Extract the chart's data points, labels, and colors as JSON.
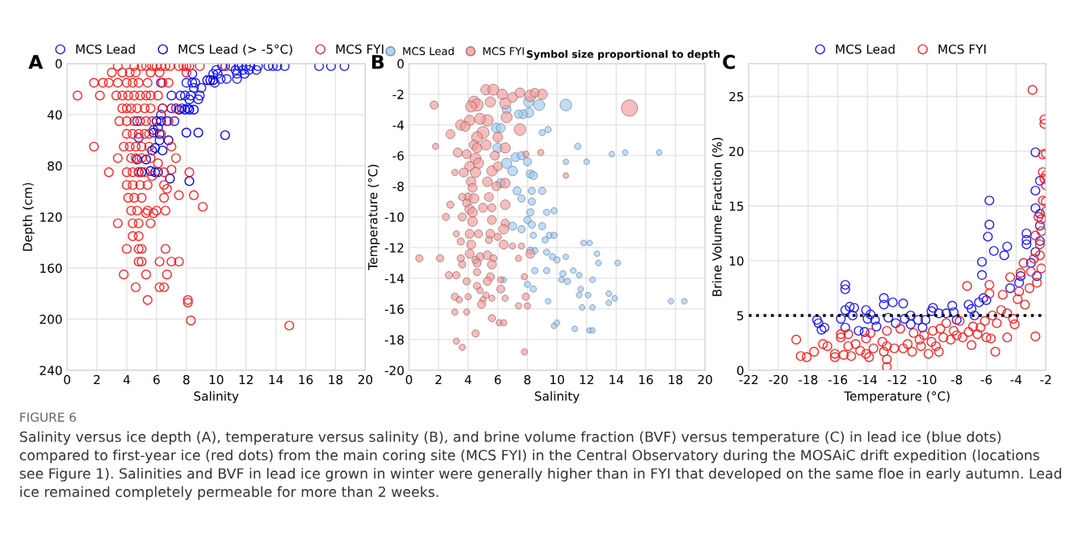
{
  "chart_data": [
    {
      "type": "scatter",
      "title": "A",
      "xlabel": "Salinity",
      "ylabel": "Depth (cm)",
      "xlim": [
        0,
        20
      ],
      "xticks": [
        0,
        2,
        4,
        6,
        8,
        10,
        12,
        14,
        16,
        18,
        20
      ],
      "ylim": [
        240,
        0
      ],
      "yticks": [
        0,
        40,
        80,
        120,
        160,
        200,
        240
      ],
      "grid": true,
      "legend": "top",
      "marker": "circle",
      "annotations": [
        "FIGURE 6",
        "Salinity versus ice depth (A), temperature versus salinity (B), and brine volume fraction (BVF) versus temperature (C) in lead ice (blue dots) compared to first-year ice (red dots) from the main coring site (MCS FYI) in the Central Observatory during the MOSAiC drift expedition (locations see Figure 1). Salinities and BVF in lead ice grown in winter were generally higher than in FYI that developed on the same floe in early autumn. Lead ice remained completely permeable for more than 2 weeks."
      ],
      "series": [
        {
          "name": "MCS Lead",
          "color": "#1a1aff",
          "x": [
            10.4,
            10.6,
            11.0,
            11.5,
            11.7,
            12.0,
            12.3,
            12.8,
            13.5,
            13.8,
            14.1,
            14.6,
            16.9,
            17.7,
            18.6,
            10.0,
            11.3,
            11.8,
            12.2,
            12.7,
            8.4,
            9.8,
            10.1,
            11.4,
            11.9,
            10.3,
            10.7,
            11.4,
            6.3,
            8.0,
            8.4,
            8.6,
            9.9,
            8.5,
            9.0,
            7.0,
            7.6,
            7.9,
            8.3,
            8.9,
            8.2,
            8.8,
            6.4,
            7.0,
            7.3,
            7.7,
            8.1,
            4.7,
            6.7,
            7.2,
            5.8,
            4.8,
            6.2,
            6.3
          ],
          "values": [
            2,
            2,
            2,
            2,
            2,
            2,
            2,
            2,
            2,
            2,
            2,
            2,
            2,
            2,
            2,
            5,
            5,
            5,
            5,
            5,
            8,
            8,
            8,
            8,
            8,
            12,
            12,
            12,
            15,
            15,
            15,
            15,
            15,
            19,
            19,
            25,
            25,
            25,
            25,
            25,
            28,
            28,
            35,
            35,
            35,
            35,
            35,
            45,
            45,
            45,
            52,
            58,
            60,
            40
          ]
        },
        {
          "name": "MCS Lead (> -5°C)",
          "color": "#0000ee",
          "x": [
            9.4,
            9.6,
            9.8,
            7.5,
            7.9,
            8.2,
            8.5,
            6.0,
            6.3,
            6.1,
            5.8,
            8.0,
            8.8,
            10.6,
            6.2,
            6.8,
            5.9,
            5.7,
            6.4,
            4.7,
            5.3,
            5.6,
            4.8,
            5.0,
            5.9,
            6.1,
            6.9,
            8.2
          ],
          "values": [
            13,
            13,
            13,
            36,
            36,
            36,
            36,
            45,
            45,
            50,
            54,
            54,
            54,
            56,
            55,
            60,
            66,
            68,
            68,
            75,
            75,
            84,
            85,
            85,
            85,
            85,
            90,
            92
          ]
        },
        {
          "name": "MCS FYI",
          "color": "#ff2020",
          "x": [
            3.4,
            4.5,
            5.0,
            5.3,
            5.7,
            6.0,
            6.3,
            6.6,
            6.9,
            7.5,
            7.8,
            8.0,
            8.2,
            8.9,
            10.6,
            3.0,
            3.7,
            4.2,
            4.6,
            5.6,
            6.2,
            8.0,
            1.8,
            2.4,
            2.8,
            3.4,
            4.0,
            4.4,
            4.8,
            5.4,
            6.4,
            6.8,
            0.7,
            2.2,
            3.3,
            3.7,
            4.1,
            4.5,
            4.9,
            5.3,
            5.6,
            6.1,
            3.7,
            4.0,
            4.3,
            4.7,
            5.2,
            5.6,
            6.4,
            7.3,
            3.5,
            4.0,
            4.5,
            4.9,
            5.3,
            5.7,
            6.8,
            4.0,
            4.4,
            4.8,
            5.2,
            5.5,
            6.3,
            1.8,
            3.8,
            4.2,
            4.6,
            5.0,
            5.5,
            7.0,
            3.4,
            4.3,
            4.6,
            5.0,
            5.6,
            7.3,
            6.1,
            2.8,
            4.0,
            4.4,
            4.8,
            5.2,
            6.5,
            8.2,
            7.0,
            5.7,
            4.0,
            4.4,
            4.9,
            5.4,
            6.5,
            6.7,
            7.5,
            8.5,
            4.1,
            4.5,
            5.0,
            6.5,
            9.1,
            4.3,
            4.7,
            5.4,
            6.0,
            6.6,
            5.3,
            5.8,
            3.4,
            4.4,
            4.8,
            5.6,
            4.4,
            4.8,
            4.0,
            4.8,
            5.0,
            6.6,
            4.8,
            5.0,
            6.2,
            7.0,
            7.5,
            3.8,
            5.3,
            6.7,
            4.6,
            6.2,
            6.5,
            5.4,
            8.1,
            8.1,
            8.3,
            14.9
          ],
          "values": [
            2,
            2,
            2,
            2,
            2,
            2,
            2,
            2,
            2,
            2,
            2,
            2,
            2,
            2,
            2,
            7,
            7,
            7,
            7,
            7,
            7,
            7,
            15,
            15,
            15,
            15,
            15,
            15,
            15,
            15,
            15,
            15,
            25,
            25,
            25,
            25,
            25,
            25,
            25,
            25,
            25,
            25,
            35,
            35,
            35,
            35,
            35,
            35,
            35,
            35,
            45,
            45,
            45,
            45,
            45,
            45,
            45,
            55,
            55,
            55,
            55,
            55,
            55,
            65,
            65,
            65,
            65,
            65,
            65,
            65,
            74,
            74,
            74,
            74,
            74,
            74,
            78,
            85,
            85,
            85,
            85,
            85,
            85,
            85,
            83,
            88,
            95,
            95,
            95,
            95,
            95,
            98,
            103,
            103,
            105,
            105,
            105,
            105,
            112,
            115,
            115,
            115,
            115,
            115,
            117,
            117,
            125,
            125,
            125,
            125,
            135,
            135,
            145,
            145,
            145,
            145,
            155,
            155,
            155,
            155,
            155,
            165,
            165,
            165,
            175,
            175,
            175,
            185,
            185,
            187,
            201,
            205
          ]
        }
      ]
    },
    {
      "type": "bubble",
      "title": "B",
      "xlabel": "Salinity",
      "ylabel": "Temperature (°C)",
      "xlim": [
        0,
        20
      ],
      "xticks": [
        0,
        2,
        4,
        6,
        8,
        10,
        12,
        14,
        16,
        18,
        20
      ],
      "ylim": [
        -20,
        0
      ],
      "yticks": [
        -20,
        -18,
        -16,
        -14,
        -12,
        -10,
        -8,
        -6,
        -4,
        -2,
        0
      ],
      "grid": true,
      "legend": "top",
      "annotations": [
        "Symbol size proportional to depth"
      ],
      "series": [
        {
          "name": "MCS Lead",
          "color": "#9ccbf5",
          "x": [
            10.6,
            8.8,
            8.1,
            8.1,
            7.7,
            7.4,
            6.6,
            5.9,
            6.2,
            9.0,
            9.4,
            11.4,
            13.7,
            14.6,
            16.9,
            10.6,
            12.0,
            6.0,
            7.2,
            7.6,
            8.0,
            7.0,
            6.6,
            8.2,
            8.4,
            6.2,
            7.3,
            7.6,
            8.3,
            8.3,
            9.0,
            8.2,
            9.3,
            9.8,
            7.0,
            7.6,
            8.0,
            8.3,
            9.0,
            8.4,
            9.2,
            9.5,
            9.8,
            11.8,
            12.2,
            8.2,
            8.5,
            9.3,
            9.7,
            10.0,
            10.6,
            12.7,
            12.8,
            14.1,
            8.5,
            9.3,
            10.4,
            10.3,
            10.7,
            11.1,
            11.5,
            12.4,
            6.4,
            8.0,
            8.4,
            11.6,
            11.5,
            12.1,
            13.5,
            13.9,
            13.5,
            9.4,
            11.7,
            12.4,
            17.7,
            18.6,
            9.8,
            10.0,
            11.2,
            12.2,
            12.4
          ],
          "values": [
            -2.7,
            -2.7,
            -2.5,
            -3.2,
            -3.3,
            -3.3,
            -3.0,
            -4.2,
            -4.2,
            -4.5,
            -4.3,
            -5.4,
            -5.9,
            -5.8,
            -5.8,
            -6.4,
            -6.4,
            -5.5,
            -6.1,
            -6.0,
            -6.4,
            -7.0,
            -6.5,
            -7.2,
            -7.3,
            -7.8,
            -8.3,
            -8.8,
            -8.3,
            -9.0,
            -8.3,
            -9.7,
            -9.7,
            -9.6,
            -10.6,
            -10.8,
            -10.2,
            -10.5,
            -10.6,
            -11.2,
            -11.5,
            -11.2,
            -11.2,
            -11.7,
            -11.7,
            -12.2,
            -12.2,
            -12.3,
            -12.6,
            -12.8,
            -12.6,
            -12.4,
            -13.0,
            -13.0,
            -13.5,
            -13.5,
            -13.7,
            -14.1,
            -14.2,
            -13.5,
            -13.8,
            -14.1,
            -14.1,
            -14.4,
            -14.7,
            -14.7,
            -15.1,
            -15.1,
            -15.0,
            -15.3,
            -15.6,
            -15.5,
            -15.9,
            -15.9,
            -15.5,
            -15.5,
            -17.1,
            -16.9,
            -17.3,
            -17.4,
            -17.4
          ],
          "sizes": [
            0.5,
            0.45,
            0.4,
            0.35,
            0.3,
            0.25,
            0.3,
            0.35,
            0.3,
            0.15,
            0.15,
            0.15,
            0.12,
            0.12,
            0.12,
            0.12,
            0.12,
            0.35,
            0.3,
            0.25,
            0.25,
            0.35,
            0.4,
            0.25,
            0.25,
            0.3,
            0.25,
            0.2,
            0.2,
            0.2,
            0.2,
            0.2,
            0.15,
            0.15,
            0.25,
            0.2,
            0.2,
            0.2,
            0.2,
            0.15,
            0.15,
            0.15,
            0.15,
            0.12,
            0.12,
            0.2,
            0.15,
            0.15,
            0.15,
            0.15,
            0.12,
            0.12,
            0.12,
            0.12,
            0.15,
            0.15,
            0.15,
            0.12,
            0.15,
            0.12,
            0.12,
            0.12,
            0.12,
            0.15,
            0.15,
            0.12,
            0.12,
            0.12,
            0.12,
            0.12,
            0.12,
            0.12,
            0.12,
            0.12,
            0.12,
            0.12,
            0.12,
            0.12,
            0.12,
            0.12,
            0.12
          ]
        },
        {
          "name": "MCS FYI",
          "color": "#f29a9a",
          "x": [
            14.9,
            7.5,
            8.2,
            9.0,
            5.2,
            5.7,
            6.3,
            7.0,
            7.5,
            8.5,
            4.4,
            4.6,
            4.2,
            5.5,
            6.5,
            1.7,
            5.3,
            4.8,
            6.6,
            4.1,
            3.5,
            3.8,
            5.0,
            4.6,
            2.8,
            1.8,
            6.0,
            4.4,
            4.6,
            5.2,
            6.5,
            3.3,
            3.9,
            4.5,
            4.7,
            5.8,
            7.9,
            8.9,
            4.1,
            4.5,
            5.6,
            6.0,
            3.7,
            3.1,
            10.6,
            4.2,
            5.3,
            5.9,
            6.5,
            4.3,
            4.0,
            4.4,
            5.4,
            6.5,
            3.6,
            2.8,
            3.9,
            4.1,
            4.3,
            5.0,
            5.6,
            2.5,
            3.6,
            4.3,
            5.6,
            6.5,
            3.2,
            4.1,
            4.7,
            5.5,
            6.4,
            6.0,
            3.5,
            4.2,
            5.4,
            6.4,
            7.0,
            7.6,
            4.1,
            4.8,
            5.3,
            0.7,
            2.1,
            3.5,
            4.5,
            5.7,
            7.4,
            8.2,
            3.6,
            4.6,
            5.6,
            2.7,
            3.2,
            4.6,
            5.5,
            6.2,
            7.8,
            3.9,
            5.3,
            4.6,
            6.2,
            4.8,
            5.2,
            3.1,
            3.4,
            4.0,
            5.0,
            5.6,
            6.5,
            7.9,
            4.9,
            7.4,
            8.0,
            3.1,
            3.9,
            5.6,
            6.1,
            6.4,
            4.5,
            3.2,
            3.6,
            7.8
          ],
          "values": [
            -2.9,
            -4.3,
            -2.1,
            -2.0,
            -1.7,
            -1.7,
            -2.0,
            -2.2,
            -1.9,
            -1.9,
            -2.5,
            -2.7,
            -2.8,
            -2.5,
            -2.6,
            -2.7,
            -3.7,
            -3.6,
            -3.5,
            -3.7,
            -4.0,
            -4.1,
            -4.5,
            -4.8,
            -4.6,
            -5.4,
            -4.8,
            -5.3,
            -5.5,
            -5.3,
            -5.5,
            -5.8,
            -5.9,
            -6.2,
            -6.5,
            -6.0,
            -5.9,
            -5.8,
            -6.7,
            -7.1,
            -7.0,
            -6.7,
            -7.1,
            -7.1,
            -7.3,
            -7.7,
            -7.7,
            -8.0,
            -7.8,
            -8.1,
            -8.7,
            -8.8,
            -8.7,
            -9.2,
            -8.7,
            -9.2,
            -9.1,
            -9.5,
            -9.7,
            -9.4,
            -9.4,
            -10.0,
            -10.0,
            -10.3,
            -10.2,
            -10.4,
            -11.1,
            -11.1,
            -11.1,
            -11.1,
            -10.8,
            -11.3,
            -11.6,
            -11.8,
            -11.5,
            -11.8,
            -11.9,
            -11.9,
            -12.4,
            -12.6,
            -12.5,
            -12.7,
            -12.7,
            -12.7,
            -12.8,
            -12.7,
            -12.7,
            -12.4,
            -13.1,
            -13.0,
            -13.1,
            -13.8,
            -13.8,
            -13.6,
            -13.9,
            -14.1,
            -13.9,
            -14.2,
            -14.2,
            -14.5,
            -14.7,
            -14.8,
            -15.1,
            -15.2,
            -15.4,
            -15.2,
            -15.4,
            -15.3,
            -15.3,
            -15.2,
            -15.7,
            -15.8,
            -15.8,
            -16.2,
            -16.2,
            -16.6,
            -16.9,
            -16.9,
            -17.6,
            -18.1,
            -18.5,
            -18.8
          ],
          "sizes": [
            1.0,
            0.5,
            0.5,
            0.4,
            0.4,
            0.45,
            0.4,
            0.35,
            0.35,
            0.3,
            0.5,
            0.55,
            0.45,
            0.4,
            0.45,
            0.25,
            0.5,
            0.45,
            0.45,
            0.4,
            0.4,
            0.35,
            0.55,
            0.45,
            0.3,
            0.15,
            0.35,
            0.35,
            0.35,
            0.4,
            0.4,
            0.3,
            0.3,
            0.45,
            0.4,
            0.3,
            0.15,
            0.15,
            0.35,
            0.4,
            0.4,
            0.3,
            0.3,
            0.15,
            0.12,
            0.35,
            0.35,
            0.3,
            0.35,
            0.3,
            0.25,
            0.35,
            0.3,
            0.35,
            0.2,
            0.2,
            0.25,
            0.35,
            0.35,
            0.3,
            0.25,
            0.2,
            0.25,
            0.35,
            0.3,
            0.25,
            0.15,
            0.3,
            0.25,
            0.3,
            0.35,
            0.2,
            0.2,
            0.3,
            0.2,
            0.3,
            0.15,
            0.15,
            0.3,
            0.25,
            0.3,
            0.2,
            0.2,
            0.2,
            0.2,
            0.2,
            0.15,
            0.3,
            0.2,
            0.25,
            0.3,
            0.2,
            0.2,
            0.2,
            0.25,
            0.15,
            0.15,
            0.2,
            0.25,
            0.2,
            0.25,
            0.15,
            0.15,
            0.2,
            0.15,
            0.15,
            0.15,
            0.15,
            0.15,
            0.2,
            0.25,
            0.15,
            0.15,
            0.15,
            0.15,
            0.2,
            0.15,
            0.15,
            0.2,
            0.15,
            0.15,
            0.15
          ]
        }
      ]
    },
    {
      "type": "scatter",
      "title": "C",
      "xlabel": "Temperature (°C)",
      "ylabel": "Brine Volume Fraction (%)",
      "xlim": [
        -22,
        -2
      ],
      "xticks": [
        -22,
        -20,
        -18,
        -16,
        -14,
        -12,
        -10,
        -8,
        -6,
        -4,
        -2
      ],
      "ylim": [
        0,
        28
      ],
      "yticks": [
        0,
        5,
        10,
        15,
        20,
        25
      ],
      "grid": true,
      "legend": "top",
      "marker": "circle",
      "ref_lines": [
        {
          "axis": "y",
          "value": 5,
          "label": null,
          "color": "#000000",
          "line_style": "dotted"
        }
      ],
      "series": [
        {
          "name": "MCS Lead",
          "color": "#1a1aff",
          "x": [
            -17.4,
            -17.3,
            -17.1,
            -16.9,
            -15.8,
            -15.5,
            -15.5,
            -15.5,
            -15.5,
            -15.2,
            -15.0,
            -14.9,
            -14.6,
            -14.2,
            -14.1,
            -14.0,
            -13.8,
            -13.5,
            -13.4,
            -12.9,
            -12.9,
            -12.6,
            -12.3,
            -12.1,
            -11.6,
            -11.5,
            -11.1,
            -11.1,
            -10.6,
            -10.3,
            -10.1,
            -9.7,
            -9.6,
            -9.2,
            -8.7,
            -8.3,
            -8.2,
            -8.0,
            -7.2,
            -7.0,
            -6.8,
            -6.5,
            -6.3,
            -6.3,
            -6.2,
            -6.0,
            -5.8,
            -5.8,
            -5.9,
            -5.5,
            -4.8,
            -4.6,
            -4.4,
            -3.8,
            -3.7,
            -3.3,
            -3.3,
            -3.3,
            -3.0,
            -2.7,
            -2.7,
            -2.7,
            -2.7,
            -2.6,
            -2.4,
            -2.4,
            -2.4,
            -2.4
          ],
          "values": [
            4.6,
            4.3,
            3.7,
            3.9,
            4.7,
            5.5,
            7.8,
            7.4,
            3.9,
            5.8,
            5.0,
            5.7,
            3.6,
            3.5,
            5.5,
            4.7,
            5.1,
            4.6,
            4.0,
            6.6,
            6.0,
            4.8,
            6.2,
            4.3,
            6.1,
            4.7,
            5.0,
            4.2,
            4.6,
            3.9,
            4.6,
            5.4,
            5.7,
            5.2,
            5.2,
            5.9,
            5.3,
            4.6,
            6.0,
            5.6,
            5.0,
            6.2,
            9.9,
            8.7,
            6.6,
            6.4,
            15.5,
            13.3,
            12.2,
            10.9,
            10.5,
            11.3,
            7.5,
            8.0,
            8.6,
            12.5,
            11.9,
            11.5,
            9.8,
            19.9,
            16.4,
            14.8,
            10.8,
            8.6,
            17.3,
            14.3,
            13.2,
            11.8
          ]
        },
        {
          "name": "MCS FYI",
          "color": "#ff2020",
          "x": [
            -18.8,
            -18.5,
            -18.1,
            -17.6,
            -17.0,
            -16.7,
            -16.2,
            -16.2,
            -15.8,
            -15.8,
            -15.6,
            -15.3,
            -15.3,
            -15.1,
            -14.8,
            -14.5,
            -14.1,
            -14.1,
            -13.8,
            -13.9,
            -13.6,
            -13.0,
            -12.9,
            -12.7,
            -12.7,
            -12.7,
            -12.7,
            -12.2,
            -11.8,
            -11.6,
            -11.3,
            -11.0,
            -10.9,
            -10.5,
            -10.4,
            -10.2,
            -9.9,
            -9.7,
            -9.6,
            -9.4,
            -9.2,
            -9.1,
            -8.9,
            -8.7,
            -8.4,
            -8.2,
            -8.0,
            -7.8,
            -7.6,
            -7.3,
            -7.2,
            -7.0,
            -6.9,
            -6.6,
            -6.4,
            -6.1,
            -6.0,
            -5.8,
            -5.8,
            -5.7,
            -5.6,
            -5.4,
            -5.3,
            -5.0,
            -4.9,
            -4.6,
            -4.6,
            -4.4,
            -4.2,
            -4.1,
            -3.9,
            -3.8,
            -3.7,
            -3.5,
            -3.4,
            -3.1,
            -3.0,
            -2.9,
            -2.8,
            -2.7,
            -2.7,
            -2.6,
            -2.5,
            -2.4,
            -2.3,
            -2.3,
            -2.2,
            -2.2,
            -2.2,
            -2.1,
            -2.1,
            -2.1,
            -2.0,
            -2.0,
            -2.0,
            -2.0,
            -2.0,
            -2.3,
            -2.4
          ],
          "values": [
            2.8,
            1.3,
            1.2,
            1.7,
            2.4,
            2.2,
            1.5,
            1.2,
            3.0,
            3.3,
            1.4,
            3.3,
            2.2,
            1.3,
            2.4,
            1.8,
            2.9,
            1.5,
            3.4,
            1.2,
            2.0,
            2.6,
            1.7,
            3.6,
            2.2,
            1.0,
            0.3,
            2.0,
            3.8,
            2.0,
            2.4,
            1.7,
            3.4,
            2.8,
            2.2,
            3.2,
            1.5,
            2.6,
            3.6,
            2.2,
            1.7,
            3.8,
            3.0,
            4.3,
            2.8,
            3.6,
            3.2,
            4.5,
            3.0,
            7.7,
            3.5,
            2.3,
            4.0,
            3.3,
            3.9,
            4.5,
            3.0,
            7.8,
            7.0,
            2.9,
            5.0,
            1.7,
            4.3,
            5.5,
            6.9,
            3.0,
            5.2,
            8.5,
            4.7,
            4.2,
            6.5,
            7.2,
            8.9,
            9.8,
            6.0,
            7.5,
            9.0,
            25.6,
            10.2,
            3.1,
            12.3,
            8.0,
            14.0,
            10.5,
            12.7,
            9.3,
            15.5,
            18.1,
            19.7,
            22.9,
            22.5,
            17.5,
            19.8,
            15.4,
            17.8,
            16.9,
            14.5,
            13.8,
            11.5
          ]
        }
      ]
    }
  ]
}
